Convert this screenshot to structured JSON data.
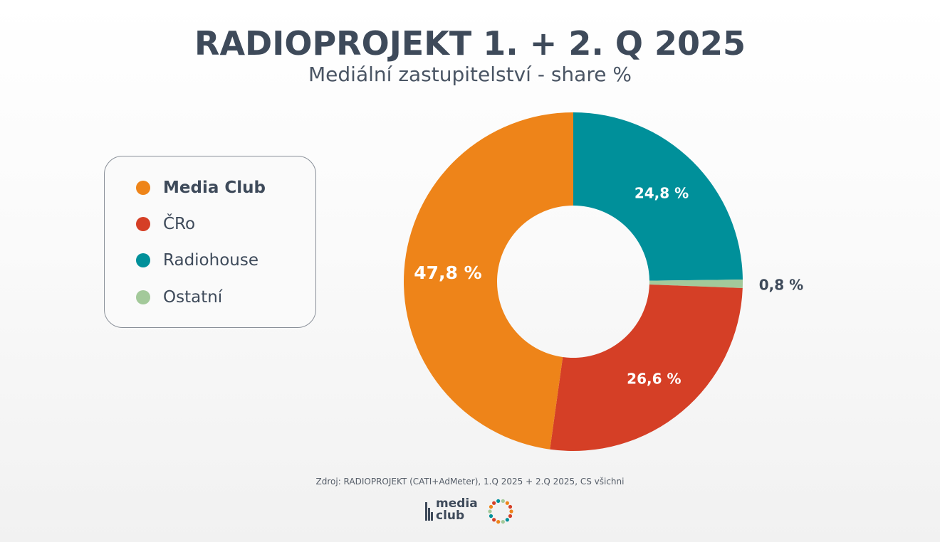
{
  "header": {
    "title": "RADIOPROJEKT 1. + 2. Q 2025",
    "subtitle": "Mediální zastupitelství - share %"
  },
  "legend": {
    "items": [
      {
        "label": "Media Club",
        "color": "#ee8419",
        "bold": true
      },
      {
        "label": "ČRo",
        "color": "#d53f26",
        "bold": false
      },
      {
        "label": "Radiohouse",
        "color": "#00909a",
        "bold": false
      },
      {
        "label": "Ostatní",
        "color": "#a3c99a",
        "bold": false
      }
    ]
  },
  "chart_data": {
    "type": "pie",
    "variant": "donut",
    "title": "RADIOPROJEKT 1. + 2. Q 2025",
    "subtitle": "Mediální zastupitelství - share %",
    "legend_position": "left",
    "categories": [
      "Radiohouse",
      "Ostatní",
      "ČRo",
      "Media Club"
    ],
    "values": [
      24.8,
      0.8,
      26.6,
      47.8
    ],
    "labels": [
      "24,8 %",
      "0,8 %",
      "26,6 %",
      "47,8 %"
    ],
    "colors": [
      "#00909a",
      "#a3c99a",
      "#d53f26",
      "#ee8419"
    ]
  },
  "footer": {
    "source": "Zdroj: RADIOPROJEKT (CATI+AdMeter), 1.Q 2025 + 2.Q 2025, CS všichni",
    "logo_text_line1": "media",
    "logo_text_line2": "club"
  }
}
